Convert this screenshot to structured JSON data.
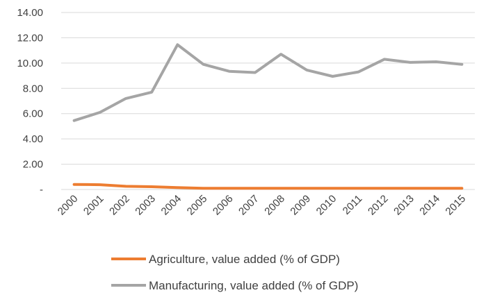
{
  "chart_data": {
    "type": "line",
    "title": "",
    "xlabel": "",
    "ylabel": "",
    "x": [
      "2000",
      "2001",
      "2002",
      "2003",
      "2004",
      "2005",
      "2006",
      "2007",
      "2008",
      "2009",
      "2010",
      "2011",
      "2012",
      "2013",
      "2014",
      "2015"
    ],
    "ylim": [
      0,
      14
    ],
    "yticks": [
      0,
      2,
      4,
      6,
      8,
      10,
      12,
      14
    ],
    "ytick_labels": [
      "-",
      "2.00",
      "4.00",
      "6.00",
      "8.00",
      "10.00",
      "12.00",
      "14.00"
    ],
    "grid": true,
    "legend_position": "bottom",
    "series": [
      {
        "name": "Agriculture, value added (% of GDP)",
        "color": "#ED7D31",
        "values": [
          0.4,
          0.38,
          0.25,
          0.22,
          0.15,
          0.1,
          0.1,
          0.1,
          0.1,
          0.1,
          0.1,
          0.1,
          0.1,
          0.1,
          0.1,
          0.1
        ]
      },
      {
        "name": "Manufacturing, value added (% of GDP)",
        "color": "#A5A5A5",
        "values": [
          5.45,
          6.1,
          7.2,
          7.7,
          11.45,
          9.9,
          9.35,
          9.25,
          10.7,
          9.45,
          8.95,
          9.3,
          10.3,
          10.05,
          10.1,
          9.9
        ]
      }
    ]
  }
}
